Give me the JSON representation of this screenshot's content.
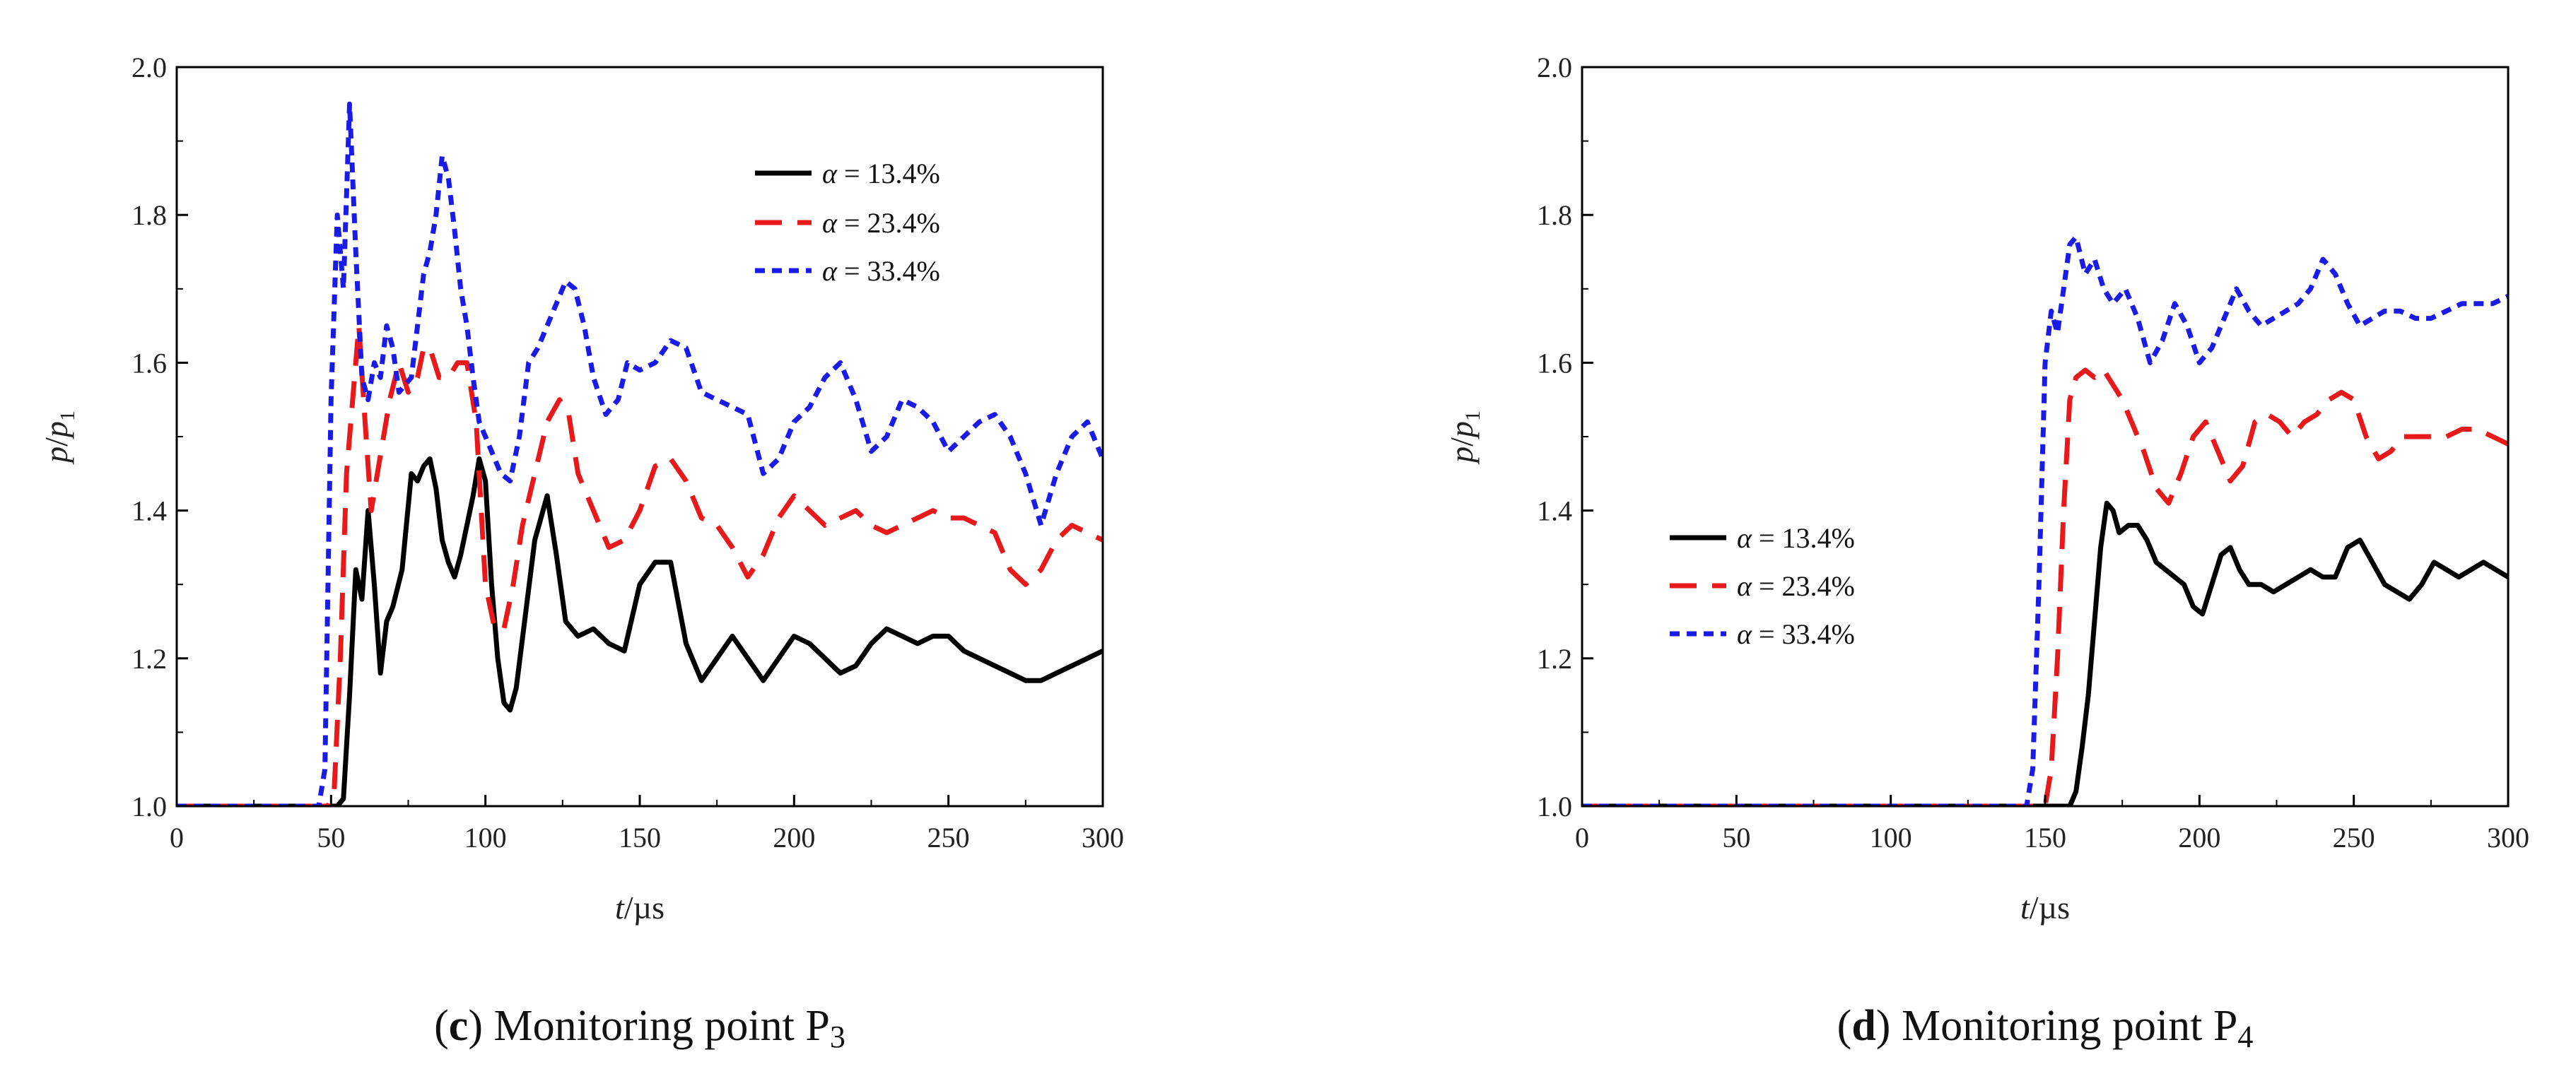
{
  "chart_data": [
    {
      "type": "line",
      "caption_letter": "c",
      "caption_text": " Monitoring point P",
      "caption_sub": "3",
      "xlabel_main": "t",
      "xlabel_rest": "/µs",
      "ylabel_main": "p",
      "ylabel_mid": "/",
      "ylabel_base": "p",
      "ylabel_sub": "1",
      "xlim": [
        0,
        300
      ],
      "ylim": [
        1.0,
        2.0
      ],
      "xticks": [
        "0",
        "50",
        "100",
        "150",
        "200",
        "250",
        "300"
      ],
      "yticks": [
        "1.0",
        "1.2",
        "1.4",
        "1.6",
        "1.8",
        "2.0"
      ],
      "legend_position": "top-right",
      "series": [
        {
          "name": "α = 13.4%",
          "symbol": "α",
          "eq": " = 13.4%",
          "color": "#000000",
          "dash": "solid",
          "x": [
            0,
            48,
            52,
            54,
            56,
            58,
            60,
            62,
            64,
            66,
            68,
            70,
            73,
            76,
            78,
            80,
            82,
            84,
            86,
            88,
            90,
            92,
            94,
            96,
            98,
            100,
            102,
            104,
            106,
            108,
            110,
            113,
            116,
            120,
            123,
            126,
            130,
            135,
            140,
            145,
            150,
            155,
            160,
            165,
            170,
            175,
            180,
            185,
            190,
            195,
            200,
            205,
            210,
            215,
            220,
            225,
            230,
            235,
            240,
            245,
            250,
            255,
            260,
            265,
            270,
            275,
            280,
            285,
            290,
            295,
            300
          ],
          "y": [
            1.0,
            1.0,
            1.0,
            1.01,
            1.15,
            1.32,
            1.28,
            1.4,
            1.3,
            1.18,
            1.25,
            1.27,
            1.32,
            1.45,
            1.44,
            1.46,
            1.47,
            1.43,
            1.36,
            1.33,
            1.31,
            1.34,
            1.38,
            1.42,
            1.47,
            1.44,
            1.3,
            1.2,
            1.14,
            1.13,
            1.16,
            1.26,
            1.36,
            1.42,
            1.34,
            1.25,
            1.23,
            1.24,
            1.22,
            1.21,
            1.3,
            1.33,
            1.33,
            1.22,
            1.17,
            1.2,
            1.23,
            1.2,
            1.17,
            1.2,
            1.23,
            1.22,
            1.2,
            1.18,
            1.19,
            1.22,
            1.24,
            1.23,
            1.22,
            1.23,
            1.23,
            1.21,
            1.2,
            1.19,
            1.18,
            1.17,
            1.17,
            1.18,
            1.19,
            1.2,
            1.21
          ]
        },
        {
          "name": "α = 23.4%",
          "symbol": "α",
          "eq": " = 23.4%",
          "color": "#e8191b",
          "dash": "long",
          "x": [
            0,
            49,
            51,
            53,
            55,
            57,
            59,
            61,
            63,
            65,
            67,
            69,
            72,
            75,
            78,
            80,
            82,
            85,
            88,
            91,
            94,
            97,
            100,
            103,
            106,
            109,
            112,
            116,
            120,
            124,
            127,
            130,
            135,
            140,
            145,
            150,
            155,
            160,
            165,
            170,
            175,
            180,
            185,
            190,
            195,
            200,
            205,
            210,
            215,
            220,
            225,
            230,
            235,
            240,
            245,
            250,
            255,
            260,
            265,
            270,
            275,
            280,
            285,
            290,
            295,
            300
          ],
          "y": [
            1.0,
            1.0,
            1.02,
            1.2,
            1.45,
            1.55,
            1.65,
            1.52,
            1.4,
            1.45,
            1.5,
            1.55,
            1.6,
            1.56,
            1.58,
            1.62,
            1.62,
            1.58,
            1.58,
            1.6,
            1.6,
            1.52,
            1.3,
            1.24,
            1.24,
            1.3,
            1.38,
            1.45,
            1.52,
            1.55,
            1.53,
            1.45,
            1.4,
            1.35,
            1.36,
            1.4,
            1.46,
            1.47,
            1.44,
            1.39,
            1.38,
            1.35,
            1.31,
            1.34,
            1.39,
            1.42,
            1.4,
            1.38,
            1.39,
            1.4,
            1.38,
            1.37,
            1.38,
            1.39,
            1.4,
            1.39,
            1.39,
            1.38,
            1.37,
            1.32,
            1.3,
            1.32,
            1.36,
            1.38,
            1.37,
            1.36
          ]
        },
        {
          "name": "α = 33.4%",
          "symbol": "α",
          "eq": " = 33.4%",
          "color": "#1b1be8",
          "dash": "short",
          "x": [
            0,
            46,
            48,
            50,
            52,
            54,
            56,
            58,
            60,
            62,
            64,
            66,
            68,
            70,
            72,
            74,
            76,
            78,
            80,
            82,
            84,
            86,
            88,
            90,
            92,
            94,
            96,
            98,
            100,
            102,
            105,
            108,
            111,
            114,
            117,
            120,
            123,
            126,
            129,
            132,
            135,
            139,
            143,
            146,
            150,
            155,
            160,
            165,
            170,
            175,
            180,
            185,
            190,
            195,
            200,
            205,
            210,
            215,
            220,
            225,
            230,
            235,
            240,
            245,
            250,
            255,
            260,
            265,
            270,
            275,
            280,
            285,
            290,
            295,
            300
          ],
          "y": [
            1.0,
            1.0,
            1.05,
            1.55,
            1.8,
            1.7,
            1.95,
            1.75,
            1.58,
            1.55,
            1.6,
            1.58,
            1.65,
            1.62,
            1.56,
            1.57,
            1.58,
            1.65,
            1.72,
            1.75,
            1.8,
            1.88,
            1.85,
            1.78,
            1.7,
            1.65,
            1.58,
            1.52,
            1.5,
            1.48,
            1.45,
            1.44,
            1.5,
            1.6,
            1.62,
            1.65,
            1.68,
            1.71,
            1.7,
            1.65,
            1.58,
            1.53,
            1.55,
            1.6,
            1.59,
            1.6,
            1.63,
            1.62,
            1.56,
            1.55,
            1.54,
            1.53,
            1.45,
            1.47,
            1.52,
            1.54,
            1.58,
            1.6,
            1.55,
            1.48,
            1.5,
            1.55,
            1.54,
            1.52,
            1.48,
            1.5,
            1.52,
            1.53,
            1.5,
            1.45,
            1.38,
            1.45,
            1.5,
            1.52,
            1.47
          ]
        }
      ]
    },
    {
      "type": "line",
      "caption_letter": "d",
      "caption_text": " Monitoring point P",
      "caption_sub": "4",
      "xlabel_main": "t",
      "xlabel_rest": "/µs",
      "ylabel_main": "p",
      "ylabel_mid": "/",
      "ylabel_base": "p",
      "ylabel_sub": "1",
      "xlim": [
        0,
        300
      ],
      "ylim": [
        1.0,
        2.0
      ],
      "xticks": [
        "0",
        "50",
        "100",
        "150",
        "200",
        "250",
        "300"
      ],
      "yticks": [
        "1.0",
        "1.2",
        "1.4",
        "1.6",
        "1.8",
        "2.0"
      ],
      "legend_position": "center-left",
      "series": [
        {
          "name": "α = 13.4%",
          "symbol": "α",
          "eq": " = 13.4%",
          "color": "#000000",
          "dash": "solid",
          "x": [
            0,
            158,
            160,
            162,
            164,
            166,
            168,
            170,
            172,
            174,
            177,
            180,
            183,
            186,
            189,
            192,
            195,
            198,
            201,
            204,
            207,
            210,
            213,
            216,
            220,
            224,
            228,
            232,
            236,
            240,
            244,
            248,
            252,
            256,
            260,
            264,
            268,
            272,
            276,
            280,
            284,
            288,
            292,
            296,
            300
          ],
          "y": [
            1.0,
            1.0,
            1.02,
            1.08,
            1.15,
            1.25,
            1.35,
            1.41,
            1.4,
            1.37,
            1.38,
            1.38,
            1.36,
            1.33,
            1.32,
            1.31,
            1.3,
            1.27,
            1.26,
            1.3,
            1.34,
            1.35,
            1.32,
            1.3,
            1.3,
            1.29,
            1.3,
            1.31,
            1.32,
            1.31,
            1.31,
            1.35,
            1.36,
            1.33,
            1.3,
            1.29,
            1.28,
            1.3,
            1.33,
            1.32,
            1.31,
            1.32,
            1.33,
            1.32,
            1.31
          ]
        },
        {
          "name": "α = 23.4%",
          "symbol": "α",
          "eq": " = 23.4%",
          "color": "#e8191b",
          "dash": "long",
          "x": [
            0,
            150,
            152,
            154,
            156,
            158,
            160,
            163,
            166,
            169,
            172,
            175,
            178,
            182,
            186,
            190,
            194,
            198,
            202,
            206,
            210,
            214,
            218,
            222,
            226,
            230,
            234,
            238,
            242,
            246,
            250,
            254,
            258,
            262,
            266,
            270,
            275,
            280,
            285,
            290,
            295,
            300
          ],
          "y": [
            1.0,
            1.0,
            1.05,
            1.2,
            1.4,
            1.55,
            1.58,
            1.59,
            1.58,
            1.59,
            1.57,
            1.55,
            1.52,
            1.48,
            1.43,
            1.41,
            1.45,
            1.5,
            1.52,
            1.48,
            1.44,
            1.46,
            1.52,
            1.53,
            1.52,
            1.5,
            1.52,
            1.53,
            1.55,
            1.56,
            1.55,
            1.5,
            1.47,
            1.48,
            1.5,
            1.5,
            1.5,
            1.5,
            1.51,
            1.51,
            1.5,
            1.49
          ]
        },
        {
          "name": "α = 33.4%",
          "symbol": "α",
          "eq": " = 33.4%",
          "color": "#1b1be8",
          "dash": "short",
          "x": [
            0,
            144,
            146,
            148,
            150,
            152,
            154,
            156,
            158,
            160,
            163,
            166,
            169,
            172,
            176,
            180,
            184,
            188,
            192,
            196,
            200,
            204,
            208,
            212,
            216,
            220,
            224,
            228,
            232,
            236,
            240,
            244,
            248,
            252,
            256,
            260,
            265,
            270,
            275,
            280,
            285,
            290,
            295,
            300
          ],
          "y": [
            1.0,
            1.0,
            1.05,
            1.3,
            1.6,
            1.67,
            1.64,
            1.7,
            1.76,
            1.77,
            1.72,
            1.74,
            1.7,
            1.68,
            1.7,
            1.66,
            1.6,
            1.63,
            1.68,
            1.65,
            1.6,
            1.62,
            1.66,
            1.7,
            1.67,
            1.65,
            1.66,
            1.67,
            1.68,
            1.7,
            1.74,
            1.72,
            1.68,
            1.65,
            1.66,
            1.67,
            1.67,
            1.66,
            1.66,
            1.67,
            1.68,
            1.68,
            1.68,
            1.69
          ]
        }
      ]
    }
  ]
}
